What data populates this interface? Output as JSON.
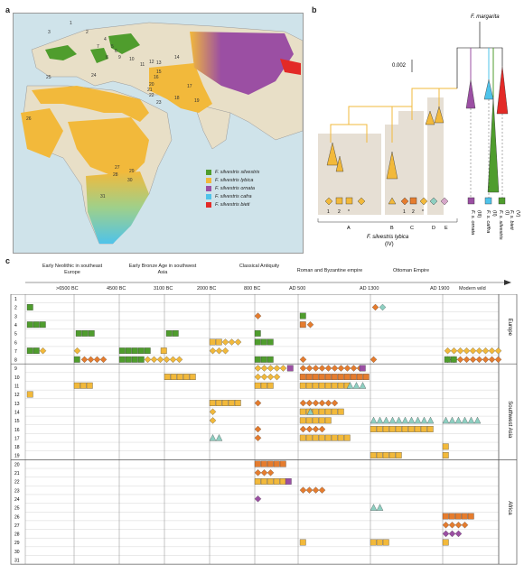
{
  "labels": {
    "a": "a",
    "b": "b",
    "c": "c"
  },
  "map": {
    "sites": [
      "1",
      "2",
      "3",
      "4",
      "5",
      "6",
      "7",
      "8",
      "9",
      "10",
      "11",
      "12",
      "13",
      "14",
      "15",
      "16",
      "17",
      "18",
      "19",
      "20",
      "21",
      "22",
      "23",
      "24",
      "25",
      "26",
      "27",
      "28",
      "29",
      "30",
      "31"
    ],
    "colors": {
      "sea": "#cfe3ea",
      "land": "#e8dfc7",
      "lybica": "#f2b93b",
      "silvestris": "#4f9d2d",
      "ornata": "#9b4fa3",
      "cafra": "#4fc3ea",
      "bieti": "#e32a27"
    }
  },
  "legend": [
    {
      "label": "F. silvestris silvestris",
      "color": "#4f9d2d"
    },
    {
      "label": "F. silvestris lybica",
      "color": "#f2b93b"
    },
    {
      "label": "F. silvestris ornata",
      "color": "#9b4fa3"
    },
    {
      "label": "F. silvestris cafra",
      "color": "#4fc3ea"
    },
    {
      "label": "F. silvestris bieti",
      "color": "#e32a27"
    }
  ],
  "tree": {
    "root": "F. margarita",
    "scale": "0.002",
    "clades": [
      "A",
      "B",
      "C",
      "D",
      "E"
    ],
    "lybica": "F. silvestris lybica",
    "lybica_num": "(IV)",
    "tips": [
      {
        "name": "F. s. ornata",
        "num": "(III)"
      },
      {
        "name": "F. s. caffra",
        "num": "(II)"
      },
      {
        "name": "F. s. silvestris",
        "num": "(I)"
      },
      {
        "name": "F. s. bieti",
        "num": "(V)"
      }
    ],
    "marks": [
      "1",
      "2",
      "*",
      "1",
      "2",
      "*"
    ]
  },
  "timeline": {
    "eras": [
      "Early Neolithic in southeast Europe",
      "Early Bronze Age in southwest Asia",
      "Classical Antiquity",
      "Roman and Byzantine empire",
      "Ottoman Empire"
    ],
    "dates": [
      ">6500 BC",
      "4500 BC",
      "3100 BC",
      "2000 BC",
      "800 BC",
      "AD 500",
      "AD 1300",
      "AD 1900",
      "Modern wild"
    ],
    "rows": [
      "1",
      "2",
      "3",
      "4",
      "5",
      "6",
      "7",
      "8",
      "9",
      "10",
      "11",
      "12",
      "13",
      "14",
      "15",
      "16",
      "17",
      "18",
      "19",
      "20",
      "21",
      "22",
      "23",
      "24",
      "25",
      "26",
      "27",
      "28",
      "29",
      "30",
      "31"
    ],
    "regions": [
      "Europe",
      "Southwest Asia",
      "Africa"
    ]
  }
}
